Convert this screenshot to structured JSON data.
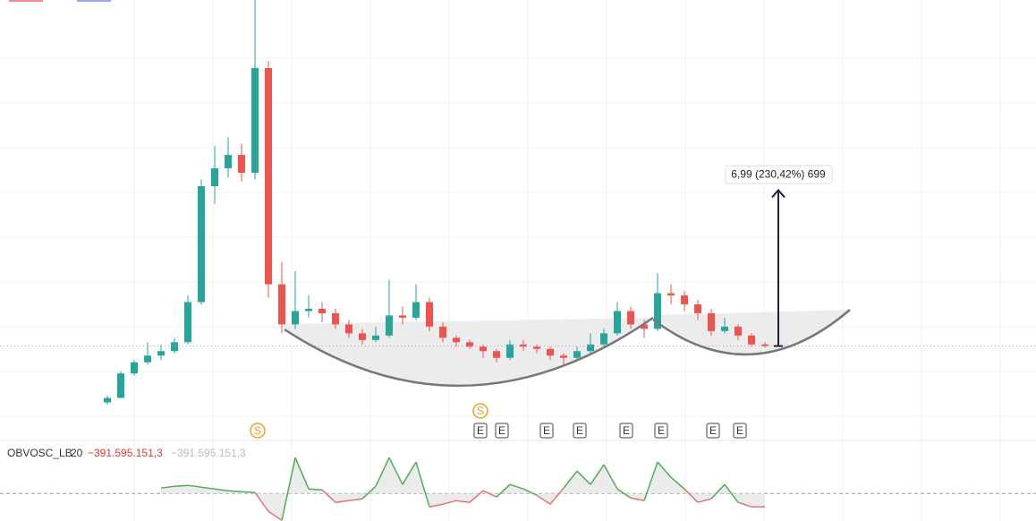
{
  "chart_data": {
    "type": "candlestick",
    "open": [
      0.5,
      0.7,
      1.8,
      2.3,
      2.6,
      2.8,
      3.2,
      5.0,
      10.2,
      11.0,
      11.6,
      10.8,
      15.5,
      5.8,
      4.0,
      4.6,
      4.7,
      4.5,
      4.0,
      3.6,
      3.3,
      3.5,
      4.4,
      4.3,
      5.0,
      3.9,
      3.4,
      3.2,
      3.0,
      2.8,
      2.5,
      3.1,
      3.0,
      2.9,
      2.6,
      2.5,
      2.8,
      3.1,
      3.6,
      4.6,
      4.0,
      3.8,
      5.4,
      5.3,
      4.9,
      4.5,
      3.7,
      3.9,
      3.5,
      3.1
    ],
    "high": [
      0.8,
      1.9,
      2.4,
      3.2,
      3.1,
      3.4,
      5.3,
      10.5,
      12.0,
      12.4,
      12.1,
      18.6,
      15.8,
      6.8,
      6.4,
      5.3,
      5.0,
      4.7,
      4.2,
      3.8,
      3.9,
      6.0,
      4.8,
      5.8,
      5.2,
      4.1,
      3.5,
      3.3,
      3.1,
      2.9,
      3.3,
      3.3,
      3.1,
      3.0,
      2.7,
      3.0,
      3.6,
      3.8,
      5.0,
      4.8,
      4.2,
      6.3,
      5.8,
      5.5,
      5.1,
      4.7,
      4.3,
      4.0,
      3.6,
      3.2
    ],
    "low": [
      0.4,
      0.7,
      1.7,
      2.2,
      2.4,
      2.7,
      3.1,
      4.9,
      9.4,
      10.6,
      10.4,
      10.5,
      5.2,
      3.6,
      3.8,
      4.3,
      4.1,
      3.8,
      3.4,
      3.1,
      3.2,
      3.4,
      4.0,
      4.2,
      3.7,
      3.2,
      3.0,
      2.9,
      2.5,
      2.3,
      2.4,
      2.8,
      2.7,
      2.4,
      2.2,
      2.4,
      2.7,
      3.0,
      3.5,
      3.8,
      3.4,
      3.7,
      4.9,
      4.6,
      4.2,
      3.5,
      3.6,
      3.3,
      3.0,
      2.95
    ],
    "close": [
      0.7,
      1.8,
      2.3,
      2.6,
      2.8,
      3.2,
      5.0,
      10.2,
      11.0,
      11.6,
      10.8,
      15.5,
      5.8,
      4.0,
      4.6,
      4.7,
      4.5,
      4.0,
      3.6,
      3.3,
      3.5,
      4.4,
      4.3,
      5.0,
      3.9,
      3.4,
      3.2,
      3.0,
      2.8,
      2.5,
      3.1,
      3.0,
      2.9,
      2.6,
      2.5,
      2.8,
      3.1,
      3.6,
      4.6,
      4.0,
      3.8,
      5.4,
      5.3,
      4.9,
      4.5,
      3.7,
      3.9,
      3.5,
      3.1,
      3.03
    ],
    "ylim": [
      0,
      18.55
    ],
    "up_color": "#26a69a",
    "down_color": "#ef5350",
    "measure": {
      "from": 3.03,
      "to": 10.02,
      "label": "6,99 (230,42%) 699"
    }
  },
  "indicator": {
    "type": "line",
    "name": "OBVOSC_LB",
    "length": 20,
    "values": [
      null,
      null,
      null,
      null,
      156000000,
      208000000,
      234000000,
      182000000,
      130000000,
      78000000,
      52000000,
      26000000,
      -520000000,
      -780000000,
      1040000000,
      130000000,
      104000000,
      -260000000,
      -208000000,
      -156000000,
      208000000,
      1040000000,
      260000000,
      910000000,
      -390000000,
      -312000000,
      -208000000,
      -260000000,
      78000000,
      -104000000,
      260000000,
      130000000,
      -52000000,
      -312000000,
      156000000,
      650000000,
      260000000,
      832000000,
      130000000,
      -130000000,
      -208000000,
      910000000,
      468000000,
      130000000,
      -260000000,
      -156000000,
      260000000,
      -260000000,
      -390000000,
      -391595151.3
    ],
    "value": -391595151.3,
    "value_label": "−391.595.151,3",
    "ylim": [
      -800000000,
      1200000000
    ],
    "up_color": "#4caf50",
    "down_color": "#e57373"
  },
  "events": [
    "S",
    "S",
    "E",
    "E",
    "E",
    "E",
    "E",
    "E",
    "E",
    "E"
  ]
}
